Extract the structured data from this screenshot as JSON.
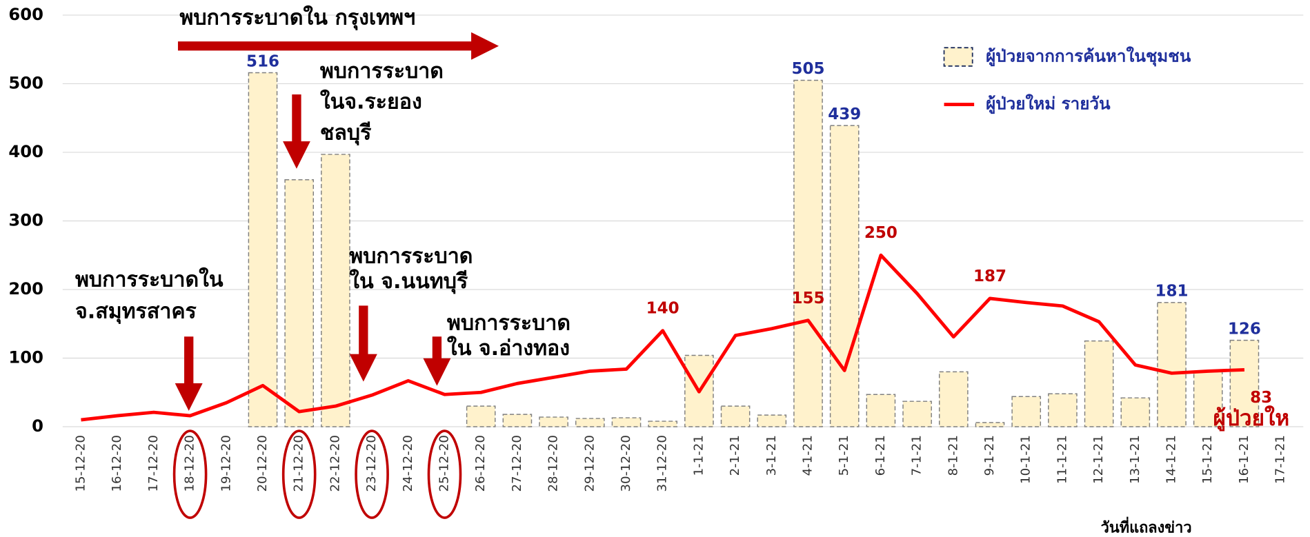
{
  "chart_data": {
    "type": "bar-line",
    "x_label": "วันที่แถลงข่าว",
    "categories": [
      "15-12-20",
      "16-12-20",
      "17-12-20",
      "18-12-20",
      "19-12-20",
      "20-12-20",
      "21-12-20",
      "22-12-20",
      "23-12-20",
      "24-12-20",
      "25-12-20",
      "26-12-20",
      "27-12-20",
      "28-12-20",
      "29-12-20",
      "30-12-20",
      "31-12-20",
      "1-1-21",
      "2-1-21",
      "3-1-21",
      "4-1-21",
      "5-1-21",
      "6-1-21",
      "7-1-21",
      "8-1-21",
      "9-1-21",
      "10-1-21",
      "11-1-21",
      "12-1-21",
      "13-1-21",
      "14-1-21",
      "15-1-21",
      "16-1-21",
      "17-1-21"
    ],
    "series": [
      {
        "name": "ผู้ป่วยจากการค้นหาในชุมชน",
        "type": "bar",
        "color": "#fff2cc",
        "values": [
          null,
          null,
          null,
          null,
          null,
          516,
          360,
          397,
          null,
          null,
          null,
          30,
          18,
          14,
          12,
          13,
          8,
          104,
          30,
          17,
          505,
          439,
          47,
          37,
          80,
          6,
          44,
          48,
          125,
          42,
          181,
          80,
          126,
          null
        ],
        "value_labels": [
          null,
          null,
          null,
          null,
          null,
          "516",
          null,
          null,
          null,
          null,
          null,
          null,
          null,
          null,
          null,
          null,
          null,
          null,
          null,
          null,
          "505",
          "439",
          null,
          null,
          null,
          null,
          null,
          null,
          null,
          null,
          "181",
          null,
          "126",
          null
        ]
      },
      {
        "name": "ผู้ป่วยใหม่ รายวัน",
        "type": "line",
        "color": "#ff0000",
        "values": [
          10,
          16,
          21,
          16,
          35,
          60,
          22,
          30,
          46,
          67,
          47,
          50,
          63,
          72,
          81,
          84,
          140,
          51,
          133,
          143,
          155,
          82,
          250,
          194,
          131,
          187,
          181,
          176,
          153,
          90,
          78,
          81,
          83,
          null
        ],
        "value_labels": [
          null,
          null,
          null,
          null,
          null,
          null,
          null,
          null,
          null,
          null,
          null,
          null,
          null,
          null,
          null,
          null,
          "140",
          null,
          null,
          null,
          "155",
          null,
          "250",
          null,
          null,
          "187",
          null,
          null,
          null,
          null,
          null,
          null,
          "83",
          null
        ]
      }
    ],
    "ylim": [
      0,
      600
    ],
    "yticks": [
      0,
      100,
      200,
      300,
      400,
      500,
      600
    ],
    "grid": true,
    "legend": "upper right",
    "annotations": [
      {
        "lines": [
          "พบการระบาดใน กรุงเทพฯ"
        ]
      },
      {
        "lines": [
          "พบการระบาด",
          "ในจ.ระยอง",
          "ชลบุรี"
        ]
      },
      {
        "lines": [
          "พบการระบาดใน",
          "จ.สมุทรสาคร"
        ]
      },
      {
        "lines": [
          "พบการระบาด",
          "ใน จ.นนทบุรี"
        ]
      },
      {
        "lines": [
          "พบการระบาด",
          "ใน จ.อ่างทอง"
        ]
      },
      {
        "lines": [
          "ผู้ป่วยให"
        ]
      }
    ]
  }
}
